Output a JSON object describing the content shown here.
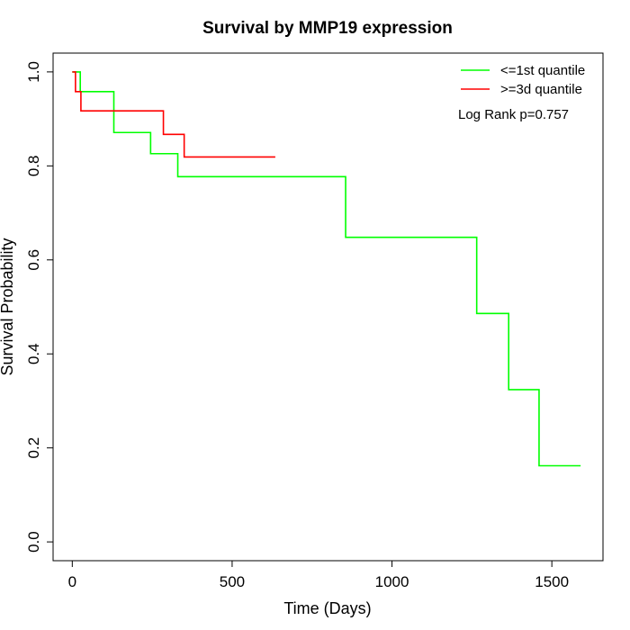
{
  "chart_data": {
    "type": "line",
    "title": "Survival by MMP19 expression",
    "xlabel": "Time (Days)",
    "ylabel": "Survival Probability",
    "xlim": [
      -60,
      1660
    ],
    "ylim": [
      -0.04,
      1.04
    ],
    "xticks": [
      0,
      500,
      1000,
      1500
    ],
    "xtick_labels": [
      "0",
      "500",
      "1000",
      "1500"
    ],
    "yticks": [
      0.0,
      0.2,
      0.4,
      0.6,
      0.8,
      1.0
    ],
    "ytick_labels": [
      "0.0",
      "0.2",
      "0.4",
      "0.6",
      "0.8",
      "1.0"
    ],
    "grid": false,
    "legend_position": "top-right",
    "annotation": "Log Rank p=0.757",
    "series": [
      {
        "name": "<=1st quantile",
        "color": "#00ff00",
        "step": true,
        "x": [
          0,
          25,
          130,
          245,
          330,
          855,
          1265,
          1365,
          1460,
          1590
        ],
        "y": [
          1.0,
          0.958,
          0.871,
          0.826,
          0.777,
          0.648,
          0.486,
          0.324,
          0.162,
          0.162
        ]
      },
      {
        "name": ">=3d quantile",
        "color": "#ff0000",
        "step": true,
        "x": [
          0,
          10,
          27,
          285,
          350,
          635
        ],
        "y": [
          1.0,
          0.958,
          0.917,
          0.867,
          0.819,
          0.819
        ]
      }
    ]
  }
}
